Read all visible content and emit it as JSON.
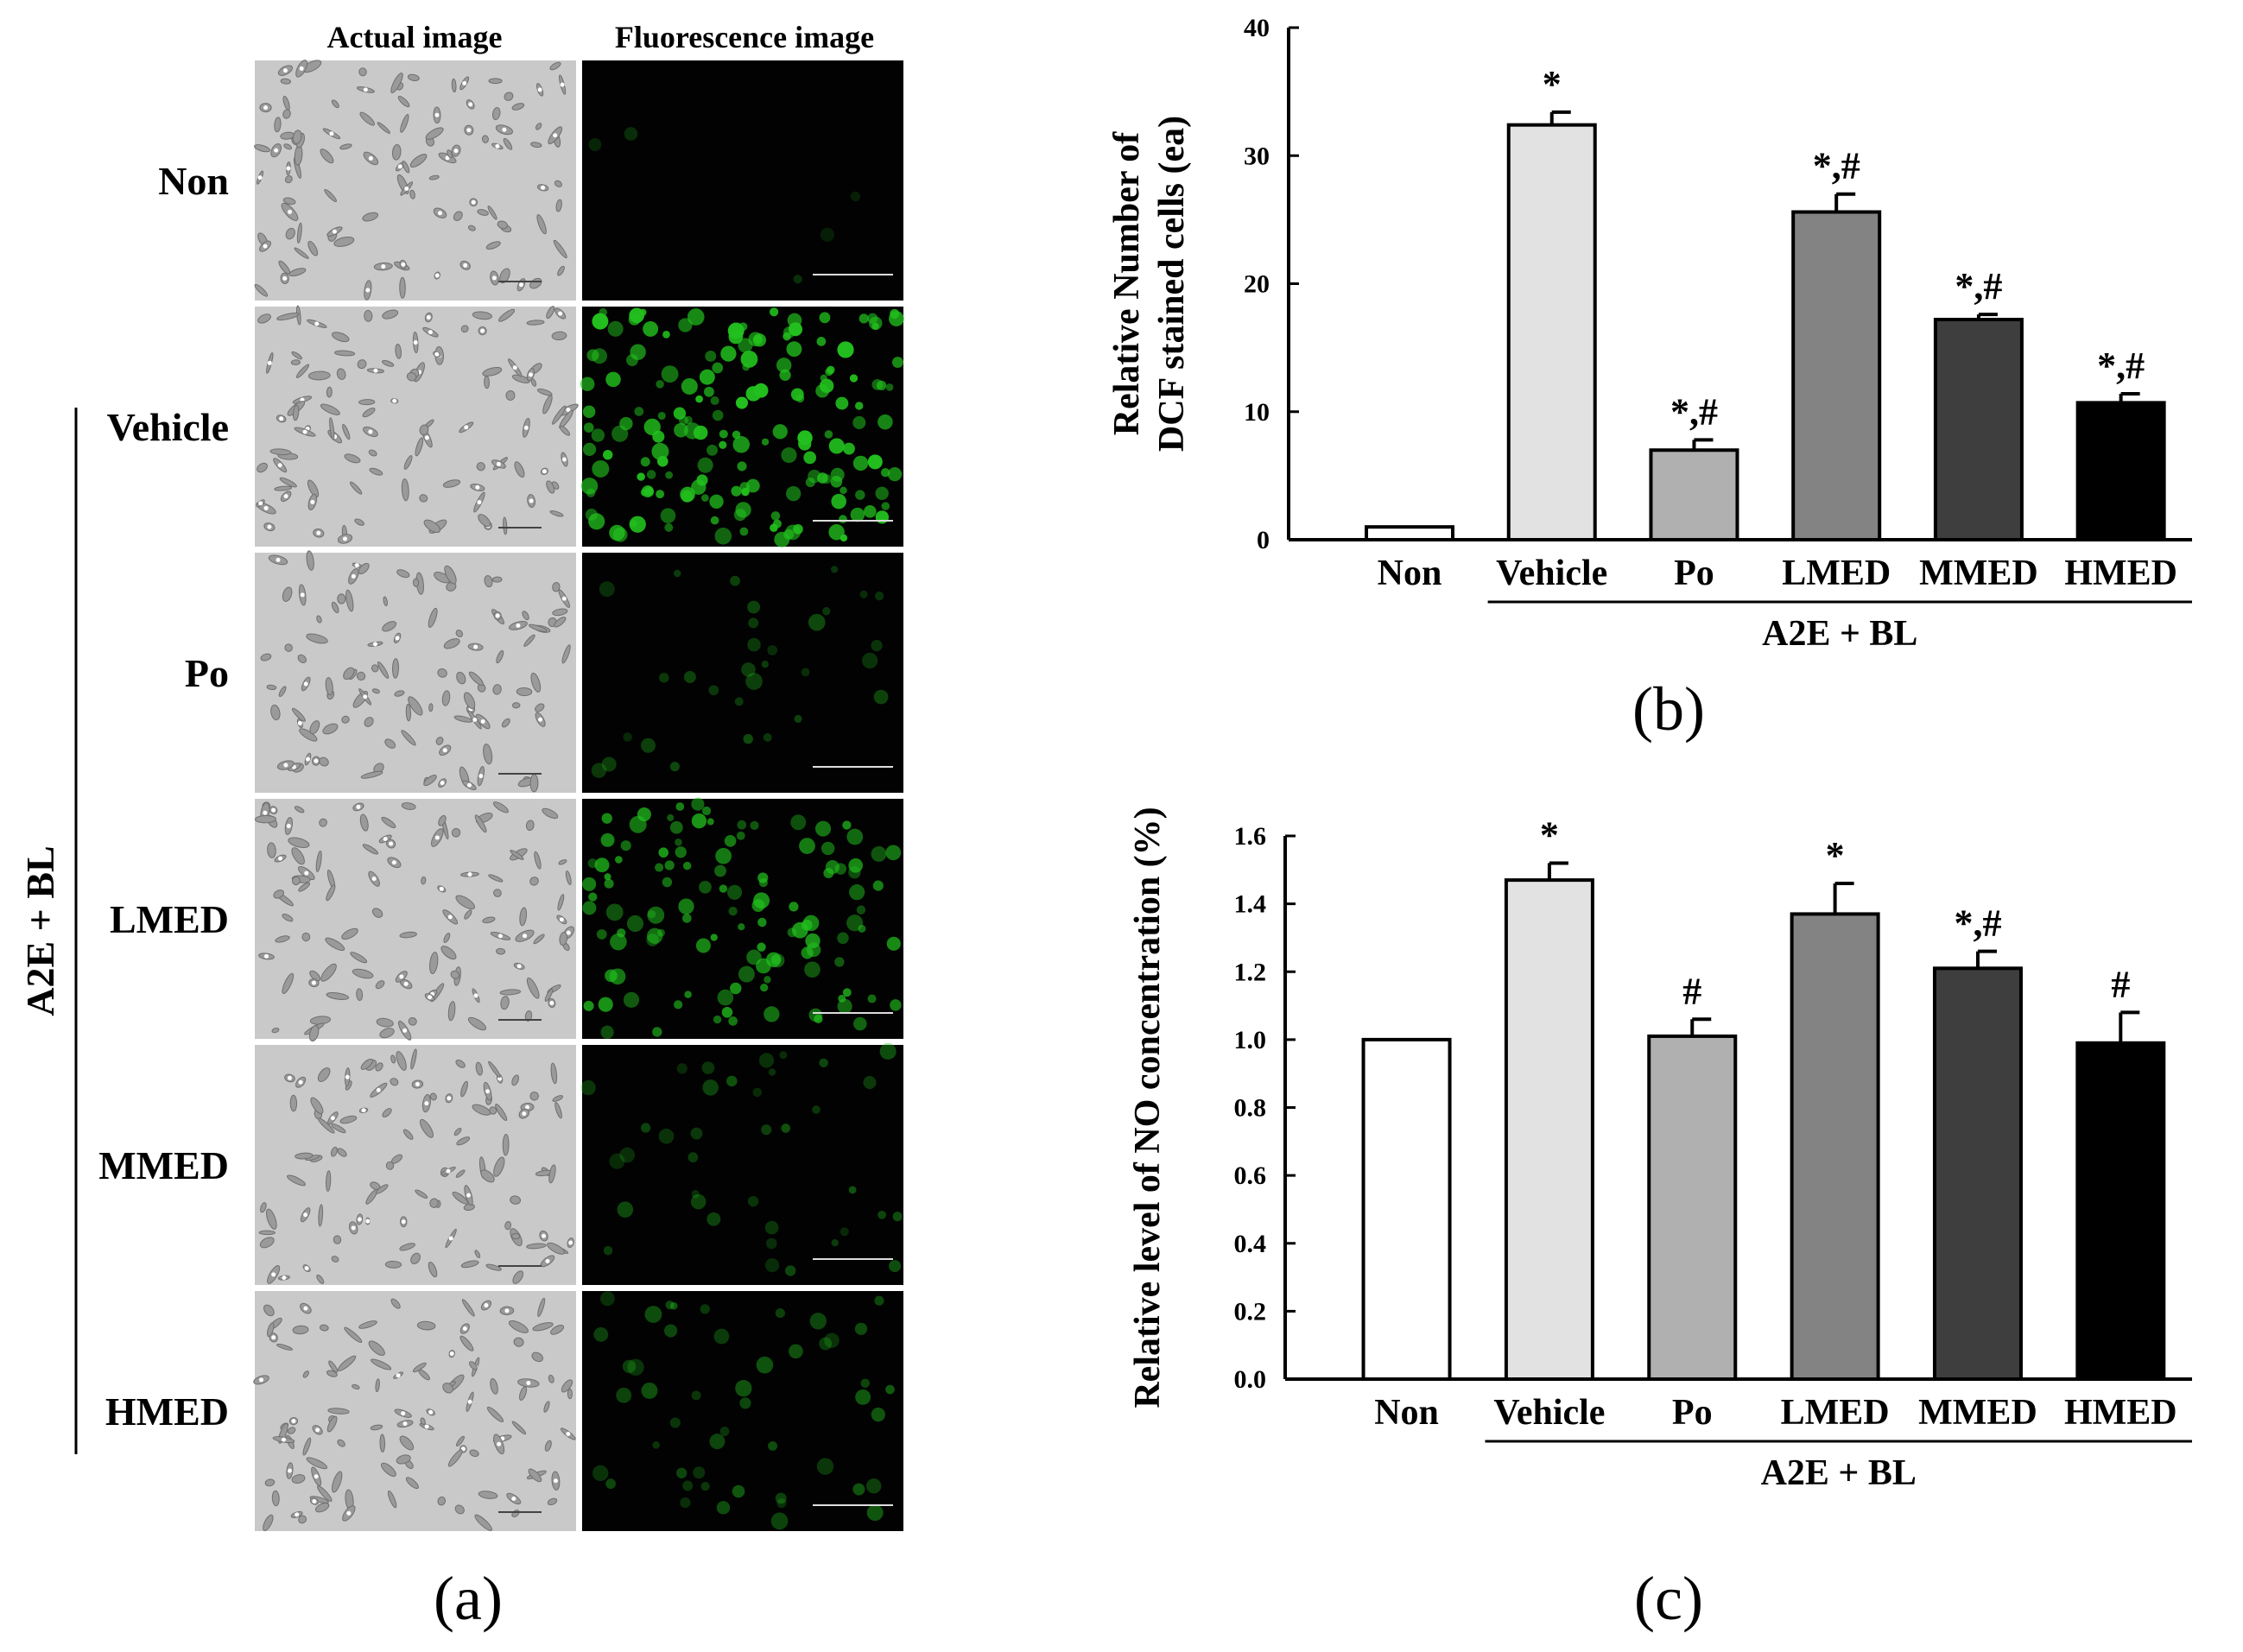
{
  "panel_a": {
    "letter": "(a)",
    "col_headers": [
      "Actual image",
      "Fluorescence image"
    ],
    "rows": [
      {
        "label": "Non",
        "fluor": 0.03
      },
      {
        "label": "Vehicle",
        "fluor": 1.0
      },
      {
        "label": "Po",
        "fluor": 0.18
      },
      {
        "label": "LMED",
        "fluor": 0.7
      },
      {
        "label": "MMED",
        "fluor": 0.22
      },
      {
        "label": "HMED",
        "fluor": 0.28
      }
    ],
    "group_label": "A2E + BL",
    "colors": {
      "fluorescence": "#22c01e",
      "phase_bg": "#c9c9c9"
    }
  },
  "chart_data": [
    {
      "type": "bar",
      "panel": "(b)",
      "ylabel": "Relative Number of DCF stained cells (ea)",
      "ylabel_lines": [
        "Relative Number of",
        "DCF stained cells (ea)"
      ],
      "ylim": [
        0,
        40
      ],
      "yticks": [
        0,
        10,
        20,
        30,
        40
      ],
      "ytick_labels": [
        "0",
        "10",
        "20",
        "30",
        "40"
      ],
      "categories": [
        "Non",
        "Vehicle",
        "Po",
        "LMED",
        "MMED",
        "HMED"
      ],
      "values": [
        1.0,
        32.4,
        7.0,
        25.6,
        17.2,
        10.7
      ],
      "errors": [
        0.0,
        1.0,
        0.8,
        1.4,
        0.4,
        0.7
      ],
      "annotations": [
        "",
        "*",
        "*,#",
        "*,#",
        "*,#",
        "*,#"
      ],
      "bar_colors": [
        "#ffffff",
        "#e2e2e2",
        "#b0b0b0",
        "#838383",
        "#3e3e3e",
        "#000000"
      ],
      "group_label": "A2E + BL",
      "grid": false
    },
    {
      "type": "bar",
      "panel": "(c)",
      "ylabel": "Relative level of NO concentration (%)",
      "ylim": [
        0,
        1.6
      ],
      "yticks": [
        0,
        0.2,
        0.4,
        0.6,
        0.8,
        1.0,
        1.2,
        1.4,
        1.6
      ],
      "ytick_labels": [
        "0.0",
        "0.2",
        "0.4",
        "0.6",
        "0.8",
        "1.0",
        "1.2",
        "1.4",
        "1.6"
      ],
      "categories": [
        "Non",
        "Vehicle",
        "Po",
        "LMED",
        "MMED",
        "HMED"
      ],
      "values": [
        1.0,
        1.47,
        1.01,
        1.37,
        1.21,
        0.99
      ],
      "errors": [
        0.0,
        0.05,
        0.05,
        0.09,
        0.05,
        0.09
      ],
      "annotations": [
        "",
        "*",
        "#",
        "*",
        "*,#",
        "#"
      ],
      "bar_colors": [
        "#ffffff",
        "#e2e2e2",
        "#b0b0b0",
        "#838383",
        "#3e3e3e",
        "#000000"
      ],
      "group_label": "A2E + BL",
      "grid": false
    }
  ]
}
